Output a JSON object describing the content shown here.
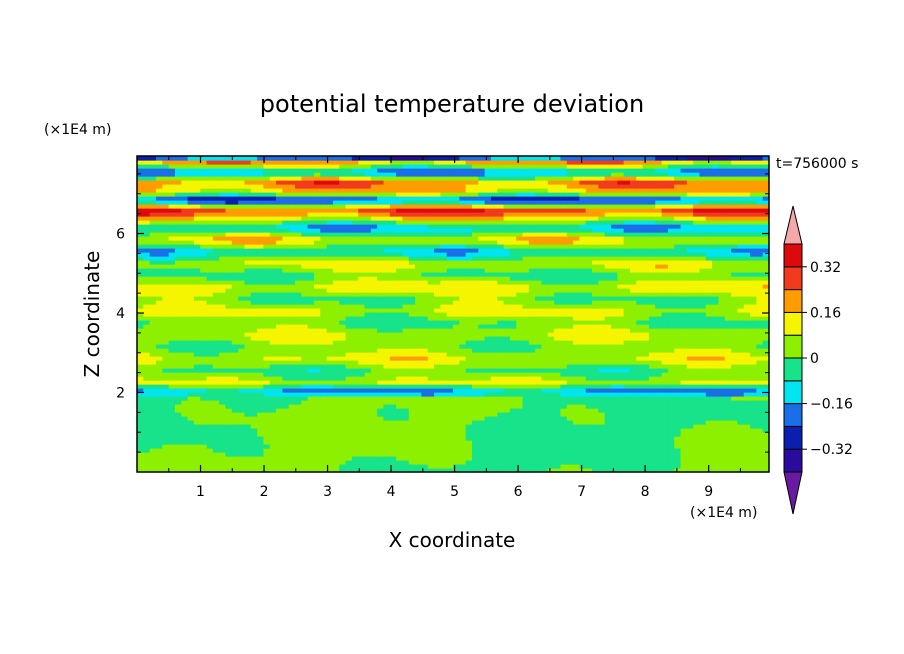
{
  "chart_data": {
    "type": "heatmap",
    "title": "potential temperature deviation",
    "xlabel": "X coordinate",
    "ylabel": "Z coordinate",
    "x_unit": "(×1E4 m)",
    "y_unit": "(×1E4 m)",
    "time_label": "t=756000 s",
    "xlim": [
      0,
      9.95
    ],
    "ylim": [
      0,
      7.95
    ],
    "x_ticks": [
      1,
      2,
      3,
      4,
      5,
      6,
      7,
      8,
      9
    ],
    "x_tick_labels": [
      "1",
      "2",
      "3",
      "4",
      "5",
      "6",
      "7",
      "8",
      "9"
    ],
    "y_ticks": [
      2,
      4,
      6
    ],
    "y_tick_labels": [
      "2",
      "4",
      "6"
    ],
    "colorbar": {
      "levels": [
        -0.4,
        -0.32,
        -0.24,
        -0.16,
        -0.08,
        0,
        0.08,
        0.16,
        0.24,
        0.32,
        0.4
      ],
      "tick_values": [
        -0.32,
        -0.16,
        0,
        0.16,
        0.32
      ],
      "tick_labels": [
        "−0.32",
        "−0.16",
        "0",
        "0.16",
        "0.32"
      ],
      "colors": [
        "#2b0a9e",
        "#0a1fb0",
        "#1a6ee8",
        "#00e5f0",
        "#16e38a",
        "#8cf000",
        "#f5f500",
        "#ff9c00",
        "#f23a1e",
        "#dc0a0a"
      ],
      "under_color": "#6a1aa0",
      "over_color": "#f4a8a8"
    },
    "field": {
      "bands": [
        {
          "z": 0.3,
          "v": 0.0
        },
        {
          "z": 0.8,
          "v": 0.04
        },
        {
          "z": 1.3,
          "v": 0.02
        },
        {
          "z": 1.85,
          "v": 0.05
        },
        {
          "z": 2.02,
          "v": -0.2
        },
        {
          "z": 2.25,
          "v": 0.09
        },
        {
          "z": 2.55,
          "v": -0.02
        },
        {
          "z": 2.85,
          "v": 0.1
        },
        {
          "z": 3.15,
          "v": 0.02
        },
        {
          "z": 3.45,
          "v": 0.08
        },
        {
          "z": 3.75,
          "v": -0.01
        },
        {
          "z": 4.05,
          "v": 0.09
        },
        {
          "z": 4.35,
          "v": 0.0
        },
        {
          "z": 4.65,
          "v": 0.12
        },
        {
          "z": 4.95,
          "v": -0.02
        },
        {
          "z": 5.25,
          "v": 0.1
        },
        {
          "z": 5.55,
          "v": -0.12
        },
        {
          "z": 5.85,
          "v": 0.14
        },
        {
          "z": 6.15,
          "v": -0.15
        },
        {
          "z": 6.45,
          "v": 0.2
        },
        {
          "z": 6.62,
          "v": 0.3
        },
        {
          "z": 6.85,
          "v": -0.3
        },
        {
          "z": 7.05,
          "v": 0.15
        },
        {
          "z": 7.3,
          "v": 0.22
        },
        {
          "z": 7.55,
          "v": -0.2
        },
        {
          "z": 7.8,
          "v": 0.18
        },
        {
          "z": 7.92,
          "v": -0.3
        }
      ]
    }
  }
}
